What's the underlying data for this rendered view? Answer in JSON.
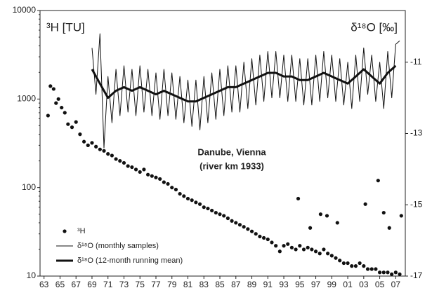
{
  "chart_data": {
    "type": "scatter",
    "y_label": "³H [TU]",
    "y2_label": "δ¹⁸O [‰]",
    "annotation": [
      "Danube, Vienna",
      "(river km 1933)"
    ],
    "xlim": [
      1962.5,
      2008.2
    ],
    "xticks": [
      {
        "value": 1963,
        "label": "63"
      },
      {
        "value": 1965,
        "label": "65"
      },
      {
        "value": 1967,
        "label": "67"
      },
      {
        "value": 1969,
        "label": "69"
      },
      {
        "value": 1971,
        "label": "71"
      },
      {
        "value": 1973,
        "label": "73"
      },
      {
        "value": 1975,
        "label": "75"
      },
      {
        "value": 1977,
        "label": "77"
      },
      {
        "value": 1979,
        "label": "79"
      },
      {
        "value": 1981,
        "label": "81"
      },
      {
        "value": 1983,
        "label": "83"
      },
      {
        "value": 1985,
        "label": "85"
      },
      {
        "value": 1987,
        "label": "87"
      },
      {
        "value": 1989,
        "label": "89"
      },
      {
        "value": 1991,
        "label": "91"
      },
      {
        "value": 1993,
        "label": "93"
      },
      {
        "value": 1995,
        "label": "95"
      },
      {
        "value": 1997,
        "label": "97"
      },
      {
        "value": 1999,
        "label": "99"
      },
      {
        "value": 2001,
        "label": "01"
      },
      {
        "value": 2003,
        "label": "03"
      },
      {
        "value": 2005,
        "label": "05"
      },
      {
        "value": 2007,
        "label": "07"
      }
    ],
    "ylim": [
      10,
      10000
    ],
    "yticks": [
      10,
      100,
      1000,
      10000
    ],
    "y_log": true,
    "y2lim": [
      -17,
      -9.55
    ],
    "y2ticks": [
      -17,
      -15,
      -13,
      -11
    ],
    "legend": "bottom-left",
    "series": [
      {
        "name": "³H",
        "type": "scatter",
        "color": "#111",
        "axis": "y",
        "x": [
          1963.5,
          1963.8,
          1964.2,
          1964.5,
          1964.8,
          1965.2,
          1965.6,
          1966,
          1966.5,
          1967,
          1967.5,
          1968,
          1968.5,
          1969,
          1969.5,
          1970,
          1970.5,
          1971,
          1971.5,
          1972,
          1972.5,
          1973,
          1973.5,
          1974,
          1974.5,
          1975,
          1975.5,
          1976,
          1976.5,
          1977,
          1977.5,
          1978,
          1978.5,
          1979,
          1979.5,
          1980,
          1980.5,
          1981,
          1981.5,
          1982,
          1982.5,
          1983,
          1983.5,
          1984,
          1984.5,
          1985,
          1985.5,
          1986,
          1986.5,
          1987,
          1987.5,
          1988,
          1988.5,
          1989,
          1989.5,
          1990,
          1990.5,
          1991,
          1991.5,
          1992,
          1992.5,
          1993,
          1993.5,
          1994,
          1994.5,
          1995,
          1995.5,
          1996,
          1996.5,
          1997,
          1997.5,
          1998,
          1998.5,
          1999,
          1999.5,
          2000,
          2000.5,
          2001,
          2001.5,
          2002,
          2002.5,
          2003,
          2003.5,
          2004,
          2004.5,
          2005,
          2005.5,
          2006,
          2006.5,
          2007,
          2007.5,
          1994.8,
          1997.6,
          1998.4,
          1996.3,
          2004.8,
          2003.2,
          2005.5,
          2007.7,
          1999.7,
          2006.2
        ],
        "values": [
          650,
          1400,
          1300,
          900,
          1000,
          800,
          700,
          520,
          480,
          550,
          400,
          330,
          300,
          320,
          290,
          270,
          260,
          240,
          230,
          210,
          200,
          190,
          175,
          170,
          160,
          150,
          160,
          140,
          135,
          130,
          125,
          115,
          110,
          100,
          95,
          85,
          80,
          75,
          72,
          68,
          65,
          60,
          58,
          55,
          52,
          50,
          48,
          45,
          42,
          40,
          38,
          36,
          34,
          32,
          30,
          28,
          27,
          26,
          24,
          22,
          19,
          22,
          23,
          21,
          20,
          22,
          20,
          21,
          20,
          19,
          18,
          20,
          18,
          17,
          16,
          15,
          14,
          14,
          13,
          13,
          14,
          13,
          12,
          12,
          12,
          11,
          11,
          11,
          10.5,
          11,
          10.5,
          75,
          50,
          48,
          35,
          120,
          65,
          52,
          48,
          40,
          35
        ]
      },
      {
        "name": "δ¹⁸O (monthly samples)",
        "type": "line",
        "line_width": 1,
        "color": "#111",
        "axis": "y2",
        "x": [
          1969,
          1969.5,
          1970,
          1970.5,
          1971,
          1971.5,
          1972,
          1972.5,
          1973,
          1973.5,
          1974,
          1974.5,
          1975,
          1975.5,
          1976,
          1976.5,
          1977,
          1977.5,
          1978,
          1978.5,
          1979,
          1979.5,
          1980,
          1980.5,
          1981,
          1981.5,
          1982,
          1982.5,
          1983,
          1983.5,
          1984,
          1984.5,
          1985,
          1985.5,
          1986,
          1986.5,
          1987,
          1987.5,
          1988,
          1988.5,
          1989,
          1989.5,
          1990,
          1990.5,
          1991,
          1991.5,
          1992,
          1992.5,
          1993,
          1993.5,
          1994,
          1994.5,
          1995,
          1995.5,
          1996,
          1996.5,
          1997,
          1997.5,
          1998,
          1998.5,
          1999,
          1999.5,
          2000,
          2000.5,
          2001,
          2001.5,
          2002,
          2002.5,
          2003,
          2003.5,
          2004,
          2004.5,
          2005,
          2005.5,
          2006,
          2006.5,
          2007,
          2007.5
        ],
        "values": [
          -10.6,
          -11.9,
          -10.2,
          -13.4,
          -11.4,
          -12.7,
          -11.2,
          -12.5,
          -11.1,
          -12.4,
          -11.2,
          -12.5,
          -11.1,
          -12.4,
          -11.2,
          -12.5,
          -11.3,
          -12.6,
          -11.2,
          -12.5,
          -11.3,
          -12.6,
          -11.4,
          -12.7,
          -11.5,
          -12.8,
          -11.5,
          -12.9,
          -11.4,
          -12.7,
          -11.3,
          -12.6,
          -11.2,
          -12.5,
          -11.1,
          -12.4,
          -11.1,
          -12.4,
          -11.0,
          -12.3,
          -10.9,
          -12.2,
          -10.8,
          -12.1,
          -10.7,
          -12.0,
          -10.7,
          -12.0,
          -10.8,
          -12.1,
          -10.8,
          -12.1,
          -10.9,
          -12.2,
          -10.9,
          -12.2,
          -10.8,
          -12.1,
          -10.7,
          -12.0,
          -10.8,
          -12.1,
          -10.9,
          -12.2,
          -11.0,
          -12.3,
          -10.8,
          -12.1,
          -10.6,
          -11.9,
          -10.8,
          -12.1,
          -11.0,
          -12.3,
          -10.7,
          -12.0,
          -10.5,
          -10.4
        ]
      },
      {
        "name": "δ¹⁸O (12-month running mean)",
        "type": "line",
        "line_width": 3,
        "color": "#111",
        "axis": "y2",
        "x": [
          1969,
          1970,
          1971,
          1972,
          1973,
          1974,
          1975,
          1976,
          1977,
          1978,
          1979,
          1980,
          1981,
          1982,
          1983,
          1984,
          1985,
          1986,
          1987,
          1988,
          1989,
          1990,
          1991,
          1992,
          1993,
          1994,
          1995,
          1996,
          1997,
          1998,
          1999,
          2000,
          2001,
          2002,
          2003,
          2004,
          2005,
          2006,
          2007
        ],
        "values": [
          -11.2,
          -11.6,
          -12.0,
          -11.8,
          -11.7,
          -11.8,
          -11.7,
          -11.8,
          -11.9,
          -11.8,
          -11.9,
          -12.0,
          -12.1,
          -12.1,
          -12.0,
          -11.9,
          -11.8,
          -11.7,
          -11.7,
          -11.6,
          -11.5,
          -11.4,
          -11.3,
          -11.3,
          -11.4,
          -11.4,
          -11.5,
          -11.5,
          -11.4,
          -11.3,
          -11.4,
          -11.5,
          -11.6,
          -11.4,
          -11.2,
          -11.4,
          -11.6,
          -11.3,
          -11.1
        ]
      }
    ]
  }
}
